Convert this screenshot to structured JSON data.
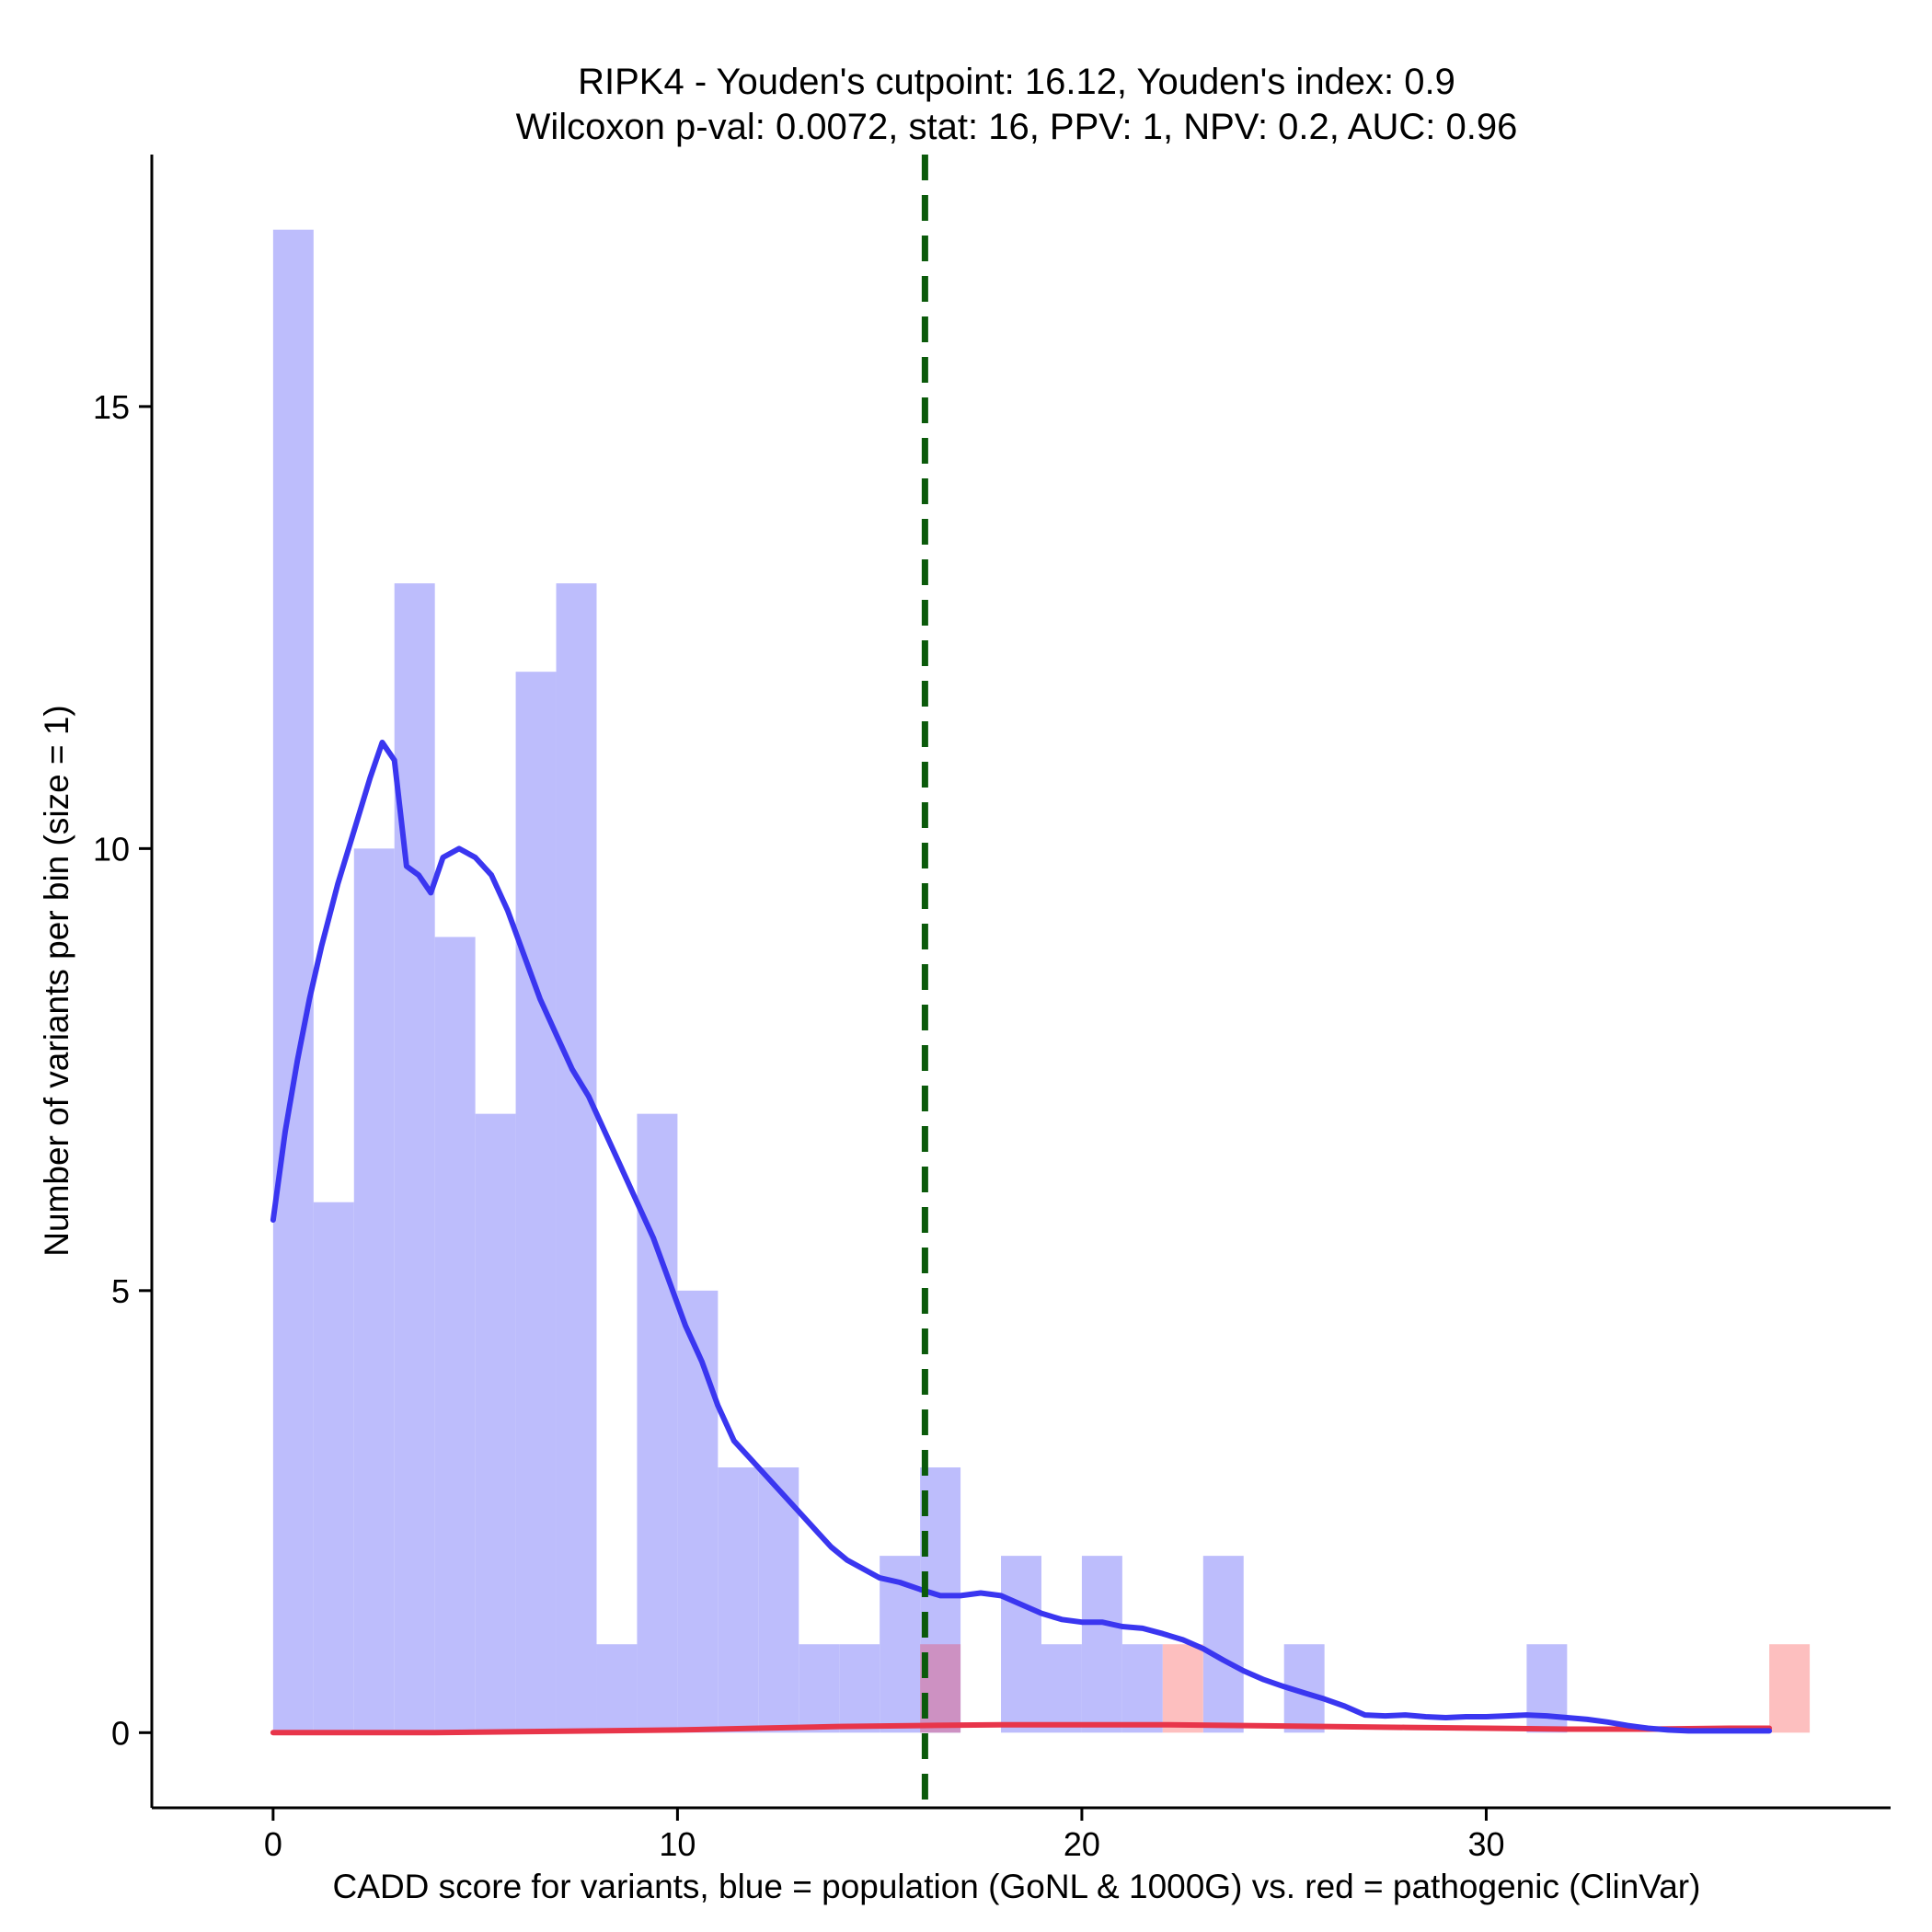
{
  "chart_data": {
    "type": "bar",
    "title_line1": "RIPK4 - Youden's cutpoint: 16.12, Youden's index: 0.9",
    "title_line2": "Wilcoxon p-val: 0.0072, stat: 16, PPV: 1, NPV: 0.2, AUC: 0.96",
    "xlabel": "CADD score for variants, blue = population (GoNL & 1000G) vs. red = pathogenic (ClinVar)",
    "ylabel": "Number of variants per bin (size = 1)",
    "xlim": [
      -3,
      40
    ],
    "ylim": [
      -0.85,
      17.85
    ],
    "x_ticks": [
      0,
      10,
      20,
      30
    ],
    "y_ticks": [
      0,
      5,
      10,
      15
    ],
    "bin_size": 1,
    "cutpoint": 16.12,
    "colors": {
      "population_bar": "#bdbdfc",
      "pathogenic_bar": "#fdbfbf",
      "overlap_bar": "#cd91c2",
      "population_line": "#3a36f0",
      "pathogenic_line": "#e8354a",
      "cutpoint_line": "#0b5a0b"
    },
    "series": [
      {
        "name": "population",
        "bins": [
          {
            "x0": 0,
            "count": 17
          },
          {
            "x0": 1,
            "count": 6
          },
          {
            "x0": 2,
            "count": 10
          },
          {
            "x0": 3,
            "count": 13
          },
          {
            "x0": 4,
            "count": 9
          },
          {
            "x0": 5,
            "count": 7
          },
          {
            "x0": 6,
            "count": 12
          },
          {
            "x0": 7,
            "count": 13
          },
          {
            "x0": 8,
            "count": 1
          },
          {
            "x0": 9,
            "count": 7
          },
          {
            "x0": 10,
            "count": 5
          },
          {
            "x0": 11,
            "count": 3
          },
          {
            "x0": 12,
            "count": 3
          },
          {
            "x0": 13,
            "count": 1
          },
          {
            "x0": 14,
            "count": 1
          },
          {
            "x0": 15,
            "count": 2
          },
          {
            "x0": 16,
            "count": 3
          },
          {
            "x0": 18,
            "count": 2
          },
          {
            "x0": 19,
            "count": 1
          },
          {
            "x0": 20,
            "count": 2
          },
          {
            "x0": 21,
            "count": 1
          },
          {
            "x0": 23,
            "count": 2
          },
          {
            "x0": 25,
            "count": 1
          },
          {
            "x0": 31,
            "count": 1
          }
        ],
        "density": [
          [
            0,
            5.8
          ],
          [
            0.3,
            6.8
          ],
          [
            0.6,
            7.6
          ],
          [
            0.9,
            8.3
          ],
          [
            1.2,
            8.9
          ],
          [
            1.6,
            9.6
          ],
          [
            2,
            10.2
          ],
          [
            2.4,
            10.8
          ],
          [
            2.7,
            11.2
          ],
          [
            3.0,
            11.0
          ],
          [
            3.3,
            9.8
          ],
          [
            3.6,
            9.7
          ],
          [
            3.9,
            9.5
          ],
          [
            4.2,
            9.9
          ],
          [
            4.6,
            10.0
          ],
          [
            5.0,
            9.9
          ],
          [
            5.4,
            9.7
          ],
          [
            5.8,
            9.3
          ],
          [
            6.2,
            8.8
          ],
          [
            6.6,
            8.3
          ],
          [
            7.0,
            7.9
          ],
          [
            7.4,
            7.5
          ],
          [
            7.8,
            7.2
          ],
          [
            8.2,
            6.8
          ],
          [
            8.6,
            6.4
          ],
          [
            9.0,
            6.0
          ],
          [
            9.4,
            5.6
          ],
          [
            9.8,
            5.1
          ],
          [
            10.2,
            4.6
          ],
          [
            10.6,
            4.2
          ],
          [
            11.0,
            3.7
          ],
          [
            11.4,
            3.3
          ],
          [
            11.8,
            3.1
          ],
          [
            12.2,
            2.9
          ],
          [
            12.6,
            2.7
          ],
          [
            13.0,
            2.5
          ],
          [
            13.4,
            2.3
          ],
          [
            13.8,
            2.1
          ],
          [
            14.2,
            1.95
          ],
          [
            14.6,
            1.85
          ],
          [
            15.0,
            1.75
          ],
          [
            15.5,
            1.7
          ],
          [
            16.0,
            1.62
          ],
          [
            16.5,
            1.55
          ],
          [
            17.0,
            1.55
          ],
          [
            17.5,
            1.58
          ],
          [
            18.0,
            1.55
          ],
          [
            18.5,
            1.45
          ],
          [
            19.0,
            1.35
          ],
          [
            19.5,
            1.28
          ],
          [
            20.0,
            1.25
          ],
          [
            20.5,
            1.25
          ],
          [
            21.0,
            1.2
          ],
          [
            21.5,
            1.18
          ],
          [
            22.0,
            1.12
          ],
          [
            22.5,
            1.05
          ],
          [
            23.0,
            0.95
          ],
          [
            23.5,
            0.82
          ],
          [
            24.0,
            0.7
          ],
          [
            24.5,
            0.6
          ],
          [
            25.0,
            0.52
          ],
          [
            25.5,
            0.45
          ],
          [
            26.0,
            0.38
          ],
          [
            26.5,
            0.3
          ],
          [
            27.0,
            0.2
          ],
          [
            27.5,
            0.19
          ],
          [
            28.0,
            0.2
          ],
          [
            28.5,
            0.18
          ],
          [
            29.0,
            0.17
          ],
          [
            29.5,
            0.18
          ],
          [
            30.0,
            0.18
          ],
          [
            30.5,
            0.19
          ],
          [
            31.0,
            0.2
          ],
          [
            31.5,
            0.19
          ],
          [
            32.0,
            0.17
          ],
          [
            32.5,
            0.15
          ],
          [
            33.0,
            0.12
          ],
          [
            33.5,
            0.08
          ],
          [
            34.0,
            0.05
          ],
          [
            34.5,
            0.03
          ],
          [
            35.0,
            0.02
          ],
          [
            36.0,
            0.02
          ],
          [
            37.0,
            0.02
          ]
        ]
      },
      {
        "name": "pathogenic",
        "bins": [
          {
            "x0": 16,
            "count": 1
          },
          {
            "x0": 22,
            "count": 1
          },
          {
            "x0": 37,
            "count": 1
          }
        ],
        "density": [
          [
            0,
            0.0
          ],
          [
            4,
            0.0
          ],
          [
            8,
            0.02
          ],
          [
            10,
            0.03
          ],
          [
            12,
            0.05
          ],
          [
            14,
            0.07
          ],
          [
            16,
            0.08
          ],
          [
            18,
            0.09
          ],
          [
            20,
            0.09
          ],
          [
            22,
            0.09
          ],
          [
            24,
            0.08
          ],
          [
            26,
            0.07
          ],
          [
            28,
            0.06
          ],
          [
            30,
            0.05
          ],
          [
            32,
            0.04
          ],
          [
            34,
            0.04
          ],
          [
            36,
            0.05
          ],
          [
            37,
            0.05
          ]
        ]
      }
    ]
  }
}
